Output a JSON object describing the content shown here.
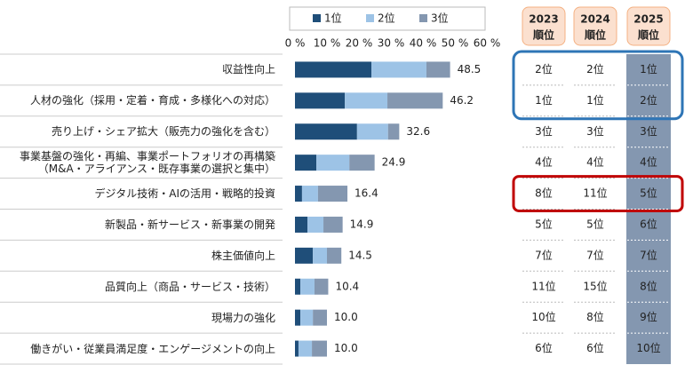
{
  "chart_data": {
    "type": "stacked-barh",
    "categories": [
      "収益性向上",
      "人材の強化（採用・定着・育成・多様化への対応）",
      "売り上げ・シェア拡大（販売力の強化を含む）",
      "事業基盤の強化・再編、事業ポートフォリオの再構築\n（M&A・アライアンス・既存事業の選択と集中）",
      "デジタル技術・AIの活用・戦略的投資",
      "新製品・新サービス・新事業の開発",
      "株主価値向上",
      "品質向上（商品・サービス・技術）",
      "現場力の強化",
      "働きがい・従業員満足度・エンゲージメントの向上"
    ],
    "series": [
      {
        "name": "1位",
        "color": "#1f4e79",
        "values": [
          23.9,
          15.6,
          19.4,
          6.7,
          2.2,
          3.9,
          5.6,
          1.7,
          1.7,
          1.1
        ]
      },
      {
        "name": "2位",
        "color": "#9dc3e6",
        "values": [
          17.2,
          13.3,
          9.7,
          10.3,
          5.0,
          5.0,
          4.4,
          4.4,
          3.9,
          4.2
        ]
      },
      {
        "name": "3位",
        "color": "#8497b0",
        "values": [
          7.4,
          17.3,
          3.5,
          7.9,
          9.2,
          6.0,
          4.5,
          4.3,
          4.4,
          4.7
        ]
      }
    ],
    "totals": [
      48.5,
      46.2,
      32.6,
      24.9,
      16.4,
      14.9,
      14.5,
      10.4,
      10.0,
      10.0
    ],
    "total_labels": [
      "48.5",
      "46.2",
      "32.6",
      "24.9",
      "16.4",
      "14.9",
      "14.5",
      "10.4",
      "10.0",
      "10.0"
    ],
    "xlim": [
      0,
      60
    ],
    "xticks": [
      {
        "value": 0,
        "label": "0 %"
      },
      {
        "value": 10,
        "label": "10 %"
      },
      {
        "value": 20,
        "label": "20 %"
      },
      {
        "value": 30,
        "label": "30 %"
      },
      {
        "value": 40,
        "label": "40 %"
      },
      {
        "value": 50,
        "label": "50 %"
      },
      {
        "value": 60,
        "label": "60 %"
      }
    ],
    "legend": "top"
  },
  "rank_table": {
    "columns": [
      {
        "year": "2023",
        "label": "順位"
      },
      {
        "year": "2024",
        "label": "順位"
      },
      {
        "year": "2025",
        "label": "順位"
      }
    ],
    "rows": [
      [
        "2位",
        "2位",
        "1位"
      ],
      [
        "1位",
        "1位",
        "2位"
      ],
      [
        "3位",
        "3位",
        "3位"
      ],
      [
        "4位",
        "4位",
        "4位"
      ],
      [
        "8位",
        "11位",
        "5位"
      ],
      [
        "5位",
        "5位",
        "6位"
      ],
      [
        "7位",
        "7位",
        "7位"
      ],
      [
        "11位",
        "15位",
        "8位"
      ],
      [
        "10位",
        "8位",
        "9位"
      ],
      [
        "6位",
        "6位",
        "10位"
      ]
    ]
  }
}
